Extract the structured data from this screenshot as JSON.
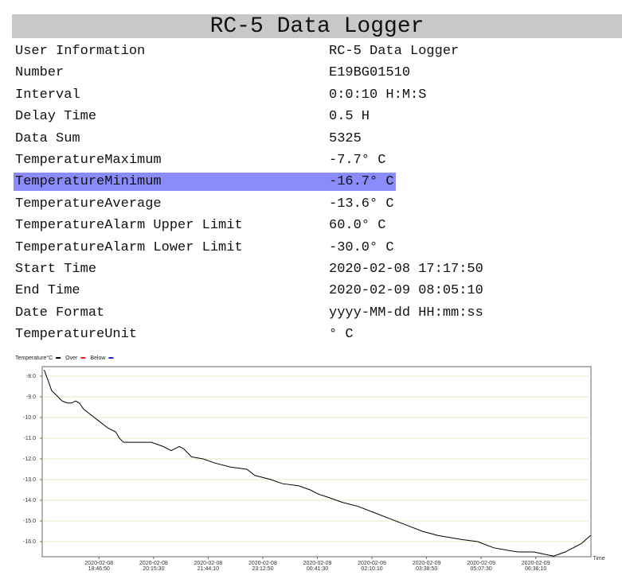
{
  "header": {
    "title": "RC-5 Data Logger"
  },
  "table": {
    "highlighted_row": 6,
    "rows": [
      [
        "User Information",
        "RC-5 Data Logger"
      ],
      [
        "Number",
        "E19BG01510"
      ],
      [
        "Interval",
        "0:0:10 H:M:S"
      ],
      [
        "Delay Time",
        "0.5 H"
      ],
      [
        "Data Sum",
        "5325"
      ],
      [
        "TemperatureMaximum",
        "-7.7° C"
      ],
      [
        "TemperatureMinimum",
        "-16.7° C"
      ],
      [
        "TemperatureAverage",
        "-13.6° C"
      ],
      [
        "TemperatureAlarm Upper Limit",
        "60.0° C"
      ],
      [
        "TemperatureAlarm Lower Limit",
        "-30.0° C"
      ],
      [
        "Start Time",
        "2020-02-08 17:17:50"
      ],
      [
        "End Time",
        "2020-02-09 08:05:10"
      ],
      [
        "Date Format",
        "yyyy-MM-dd HH:mm:ss"
      ],
      [
        "TemperatureUnit",
        "° C"
      ]
    ]
  },
  "chart_data": {
    "type": "line",
    "x_label": "Time",
    "x": [
      "2020-02-08 17:17:50",
      "2020-02-08 17:24",
      "2020-02-08 17:30",
      "2020-02-08 17:37",
      "2020-02-08 17:47",
      "2020-02-08 17:56",
      "2020-02-08 18:02",
      "2020-02-08 18:09",
      "2020-02-08 18:15",
      "2020-02-08 18:22",
      "2020-02-08 18:35",
      "2020-02-08 18:48",
      "2020-02-08 19:01",
      "2020-02-08 19:14",
      "2020-02-08 19:20",
      "2020-02-08 19:27",
      "2020-02-08 19:46",
      "2020-02-08 20:12",
      "2020-02-08 20:31",
      "2020-02-08 20:44",
      "2020-02-08 20:57",
      "2020-02-08 21:04",
      "2020-02-08 21:17",
      "2020-02-08 21:36",
      "2020-02-08 21:55",
      "2020-02-08 22:21",
      "2020-02-08 22:47",
      "2020-02-08 23:00",
      "2020-02-08 23:26",
      "2020-02-08 23:45",
      "2020-02-09 00:11",
      "2020-02-09 00:30",
      "2020-02-09 00:43",
      "2020-02-09 01:03",
      "2020-02-09 01:22",
      "2020-02-09 01:48",
      "2020-02-09 02:14",
      "2020-02-09 02:40",
      "2020-02-09 03:06",
      "2020-02-09 03:32",
      "2020-02-09 03:57",
      "2020-02-09 04:36",
      "2020-02-09 05:02",
      "2020-02-09 05:28",
      "2020-02-09 05:47",
      "2020-02-09 06:07",
      "2020-02-09 06:33",
      "2020-02-09 07:05",
      "2020-02-09 07:24",
      "2020-02-09 07:50",
      "2020-02-09 08:05:10"
    ],
    "series": [
      {
        "name": "Temperature°C",
        "color": "#000000",
        "values": [
          -7.7,
          -8.2,
          -8.7,
          -8.9,
          -9.2,
          -9.3,
          -9.3,
          -9.2,
          -9.3,
          -9.6,
          -9.9,
          -10.2,
          -10.5,
          -10.7,
          -11.0,
          -11.2,
          -11.2,
          -11.2,
          -11.4,
          -11.6,
          -11.4,
          -11.5,
          -11.9,
          -12.0,
          -12.2,
          -12.4,
          -12.5,
          -12.8,
          -13.0,
          -13.2,
          -13.3,
          -13.5,
          -13.7,
          -13.9,
          -14.1,
          -14.3,
          -14.6,
          -14.9,
          -15.2,
          -15.5,
          -15.7,
          -15.9,
          -16.0,
          -16.3,
          -16.4,
          -16.5,
          -16.5,
          -16.7,
          -16.5,
          -16.1,
          -15.7
        ]
      }
    ],
    "thresholds": [
      {
        "name": "Over",
        "color": "#e02020"
      },
      {
        "name": "Below",
        "color": "#2020e0"
      }
    ],
    "xlim": [
      "2020-02-08 17:17:50",
      "2020-02-09 08:05:10"
    ],
    "xticks": [
      "2020-02-08 18:46:50",
      "2020-02-08 20:15:30",
      "2020-02-08 21:44:10",
      "2020-02-08 23:12:50",
      "2020-02-09 00:41:30",
      "2020-02-09 02:10:10",
      "2020-02-09 03:38:50",
      "2020-02-09 05:07:30",
      "2020-02-09 06:36:10"
    ],
    "ylim": [
      -16.73,
      -7.54
    ],
    "yticks": [
      {
        "value": -8,
        "label": "-8.0"
      },
      {
        "value": -9,
        "label": "-9.0"
      },
      {
        "value": -10,
        "label": "-10.0"
      },
      {
        "value": -11,
        "label": "-11.0"
      },
      {
        "value": -12,
        "label": "-12.0"
      },
      {
        "value": -13,
        "label": "-13.0"
      },
      {
        "value": -14,
        "label": "-14.0"
      },
      {
        "value": -15,
        "label": "-15.0"
      },
      {
        "value": -16,
        "label": "-16.0"
      }
    ],
    "grid": true
  }
}
